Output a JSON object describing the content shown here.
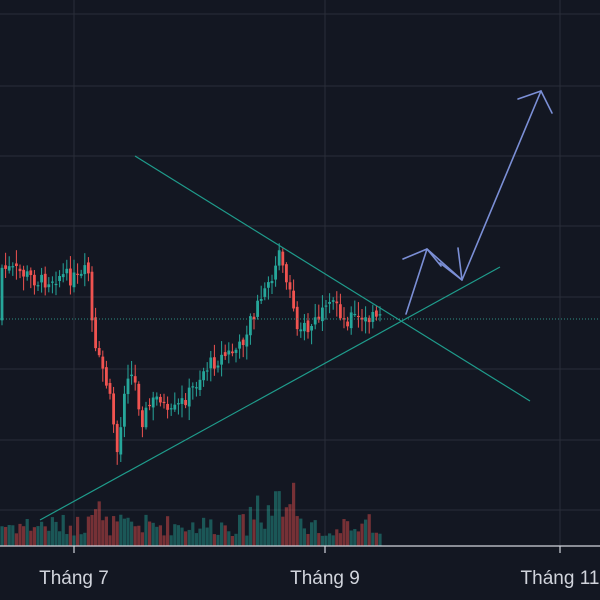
{
  "chart_data": {
    "type": "candlestick",
    "title": "",
    "xlabel": "",
    "ylabel": "",
    "x_ticks": [
      "Tháng 7",
      "Tháng 9",
      "Tháng 11"
    ],
    "grid": true,
    "colors": {
      "background": "#131722",
      "grid": "#2a2e39",
      "up": "#26a69a",
      "down": "#ef5350",
      "trendline": "#1f9c8c",
      "arrow": "#7b8fd6",
      "axis_text": "#d1d4dc"
    },
    "volume_shown": true,
    "annotations": [
      {
        "type": "descending-trendline"
      },
      {
        "type": "ascending-trendline"
      },
      {
        "type": "projection-arrow",
        "direction": "up"
      }
    ]
  }
}
